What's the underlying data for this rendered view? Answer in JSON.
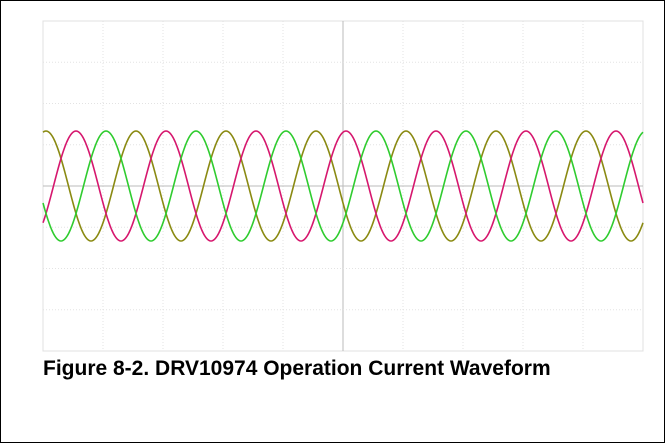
{
  "figure": {
    "caption": "Figure 8-2. DRV10974 Operation Current Waveform"
  }
}
